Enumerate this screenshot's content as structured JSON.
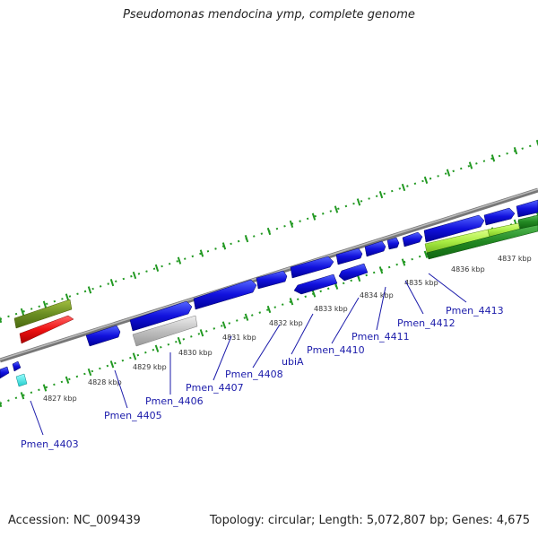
{
  "title": "Pseudomonas mendocina ymp, complete genome",
  "footer": {
    "accession": "Accession: NC_009439",
    "topology": "Topology: circular; Length: 5,072,807 bp; Genes: 4,675"
  },
  "colors": {
    "cds": "#1111dd",
    "rrna": "#dd1111",
    "trna_grey": "#c0c0c0",
    "misc_green": "#6b8e23",
    "cyan": "#22dddd",
    "lime": "#aaee44",
    "dark_green": "#228822",
    "backbone": "#888888",
    "tick": "#229922",
    "label": "#1a1aaa"
  },
  "scale_labels": [
    "4827 kbp",
    "4828 kbp",
    "4829 kbp",
    "4830 kbp",
    "4831 kbp",
    "4832 kbp",
    "4833 kbp",
    "4834 kbp",
    "4835 kbp",
    "4836 kbp",
    "4837 kbp"
  ],
  "gene_labels": [
    "Pmen_4403",
    "Pmen_4405",
    "Pmen_4406",
    "Pmen_4407",
    "Pmen_4408",
    "ubiA",
    "Pmen_4410",
    "Pmen_4411",
    "Pmen_4412",
    "Pmen_4413"
  ]
}
